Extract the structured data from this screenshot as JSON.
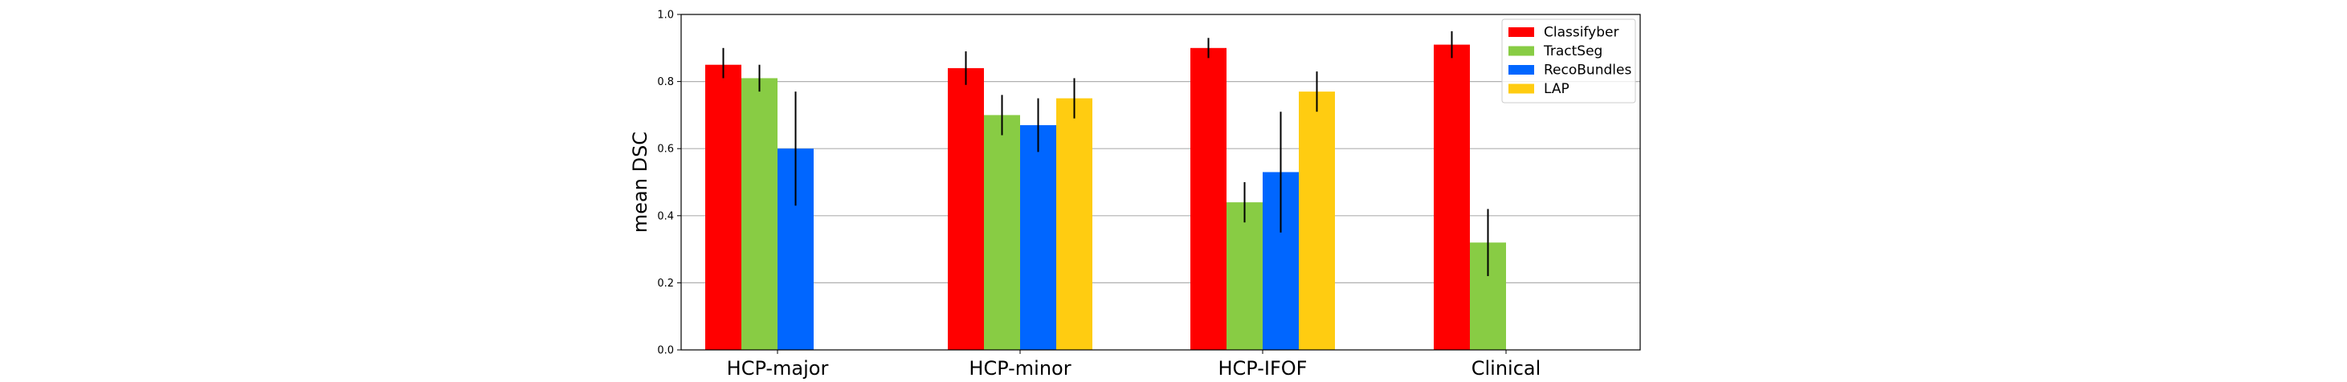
{
  "chart_data": {
    "type": "bar",
    "title": "",
    "xlabel": "",
    "ylabel": "mean DSC",
    "ylim": [
      0,
      1.0
    ],
    "yticks": [
      "0.0",
      "0.2",
      "0.4",
      "0.6",
      "0.8",
      "1.0"
    ],
    "grid": "horizontal",
    "legend_position": "top-right",
    "categories": [
      "HCP-major",
      "HCP-minor",
      "HCP-IFOF",
      "Clinical"
    ],
    "series": [
      {
        "name": "Classifyber",
        "color": "#ff0000",
        "values": [
          0.85,
          0.84,
          0.9,
          0.91
        ],
        "err_low": [
          0.81,
          0.79,
          0.87,
          0.87
        ],
        "err_high": [
          0.9,
          0.89,
          0.93,
          0.95
        ]
      },
      {
        "name": "TractSeg",
        "color": "#88cc44",
        "values": [
          0.81,
          0.7,
          0.44,
          0.32
        ],
        "err_low": [
          0.77,
          0.64,
          0.38,
          0.22
        ],
        "err_high": [
          0.85,
          0.76,
          0.5,
          0.42
        ]
      },
      {
        "name": "RecoBundles",
        "color": "#0066ff",
        "values": [
          0.6,
          0.67,
          0.53,
          null
        ],
        "err_low": [
          0.43,
          0.59,
          0.35,
          null
        ],
        "err_high": [
          0.77,
          0.75,
          0.71,
          null
        ]
      },
      {
        "name": "LAP",
        "color": "#ffcc11",
        "values": [
          null,
          0.75,
          0.77,
          null
        ],
        "err_low": [
          null,
          0.69,
          0.71,
          null
        ],
        "err_high": [
          null,
          0.81,
          0.83,
          null
        ]
      }
    ]
  }
}
